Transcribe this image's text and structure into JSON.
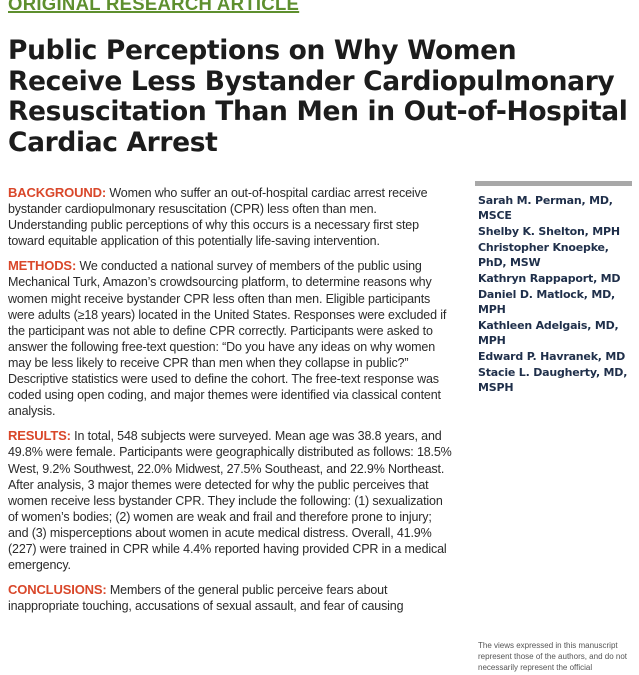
{
  "header": {
    "section_label": "ORIGINAL RESEARCH ARTICLE",
    "title": "Public Perceptions on Why Women Receive Less Bystander Cardiopulmonary Resuscitation Than Men in Out-of-Hospital Cardiac Arrest"
  },
  "abstract": {
    "background": {
      "heading": "BACKGROUND:",
      "text": "Women who suffer an out-of-hospital cardiac arrest receive bystander cardiopulmonary resuscitation (CPR) less often than men. Understanding public perceptions of why this occurs is a necessary first step toward equitable application of this potentially life-saving intervention."
    },
    "methods": {
      "heading": "METHODS:",
      "text": "We conducted a national survey of members of the public using Mechanical Turk, Amazon’s crowdsourcing platform, to determine reasons why women might receive bystander CPR less often than men. Eligible participants were adults (≥18 years) located in the United States. Responses were excluded if the participant was not able to define CPR correctly. Participants were asked to answer the following free-text question: “Do you have any ideas on why women may be less likely to receive CPR than men when they collapse in public?” Descriptive statistics were used to define the cohort. The free-text response was coded using open coding, and major themes were identified via classical content analysis."
    },
    "results": {
      "heading": "RESULTS:",
      "text": "In total, 548 subjects were surveyed. Mean age was 38.8 years, and 49.8% were female. Participants were geographically distributed as follows: 18.5% West, 9.2% Southwest, 22.0% Midwest, 27.5% Southeast, and 22.9% Northeast. After analysis, 3 major themes were detected for why the public perceives that women receive less bystander CPR. They include the following: (1) sexualization of women’s bodies; (2) women are weak and frail and therefore prone to injury; and (3) misperceptions about women in acute medical distress. Overall, 41.9% (227) were trained in CPR while 4.4% reported having provided CPR in a medical emergency."
    },
    "conclusions": {
      "heading": "CONCLUSIONS:",
      "text": "Members of the general public perceive fears about inappropriate touching, accusations of sexual assault, and fear of causing"
    }
  },
  "authors": [
    "Sarah M. Perman, MD, MSCE",
    "Shelby K. Shelton, MPH",
    "Christopher Knoepke, PhD, MSW",
    "Kathryn Rappaport, MD",
    "Daniel D. Matlock, MD, MPH",
    "Kathleen Adelgais, MD, MPH",
    "Edward P. Havranek, MD",
    "Stacie L. Daugherty, MD, MSPH"
  ],
  "disclaimer": "The views expressed in this manuscript represent those of the authors, and do not necessarily represent the official"
}
